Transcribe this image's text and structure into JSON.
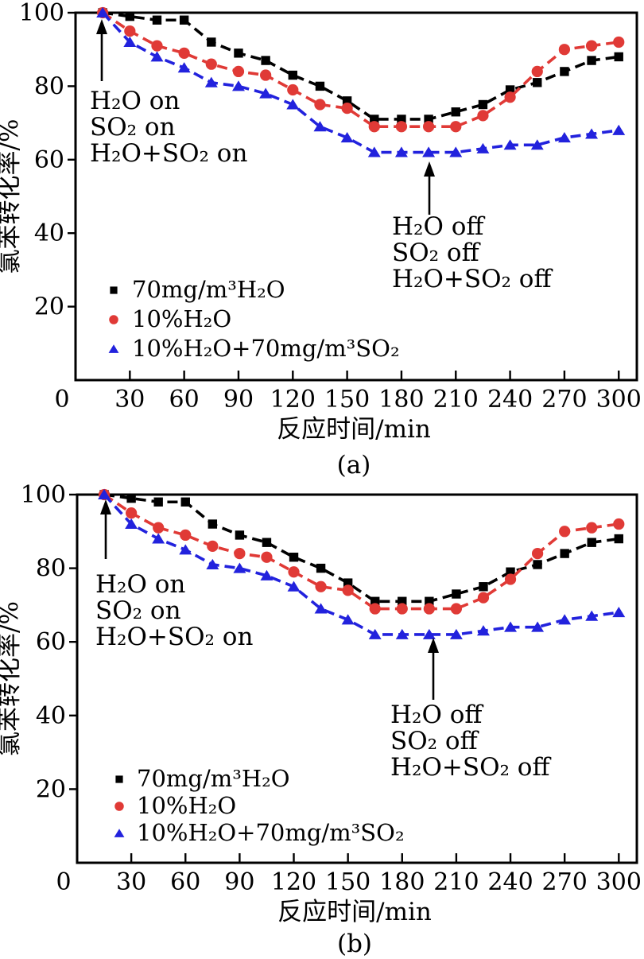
{
  "figure_background": "#ffffff",
  "colors": {
    "series_h2o_70mg": "#000000",
    "series_h2o_10pct": "#e03a36",
    "series_h2o_so2": "#2222dd",
    "axis": "#000000"
  },
  "chart_data": [
    {
      "type": "line",
      "caption": "(a)",
      "xlabel": "反应时间/min",
      "ylabel": "氯苯转化率/%",
      "xlim": [
        0,
        310
      ],
      "ylim": [
        0,
        100
      ],
      "x_ticks": [
        0,
        30,
        60,
        90,
        120,
        150,
        180,
        210,
        240,
        270,
        300
      ],
      "y_ticks": [
        20,
        40,
        60,
        80,
        100
      ],
      "grid": false,
      "legend_position": "inside-lower-left",
      "x": [
        15,
        30,
        45,
        60,
        75,
        90,
        105,
        120,
        135,
        150,
        165,
        180,
        195,
        210,
        225,
        240,
        255,
        270,
        285,
        300
      ],
      "series": [
        {
          "name": "70mg/m³H₂O",
          "marker": "square",
          "color": "#000000",
          "values": [
            100,
            99,
            98,
            98,
            92,
            89,
            87,
            83,
            80,
            76,
            71,
            71,
            71,
            73,
            75,
            79,
            81,
            84,
            87,
            88
          ]
        },
        {
          "name": "10%H₂O",
          "marker": "circle",
          "color": "#e03a36",
          "values": [
            100,
            95,
            91,
            89,
            86,
            84,
            83,
            79,
            75,
            74,
            69,
            69,
            69,
            69,
            72,
            77,
            84,
            90,
            91,
            92
          ]
        },
        {
          "name": "10%H₂O+70mg/m³SO₂",
          "marker": "triangle",
          "color": "#2222dd",
          "values": [
            100,
            92,
            88,
            85,
            81,
            80,
            78,
            75,
            69,
            66,
            62,
            62,
            62,
            62,
            63,
            64,
            64,
            66,
            67,
            68
          ]
        }
      ],
      "annotations": [
        {
          "id": "on",
          "lines": [
            "H₂O on",
            "SO₂ on",
            "H₂O+SO₂ on"
          ],
          "arrow_points_to_t": 15
        },
        {
          "id": "off",
          "lines": [
            "H₂O off",
            "SO₂ off",
            "H₂O+SO₂ off"
          ],
          "arrow_points_to_t": 195
        }
      ]
    },
    {
      "type": "line",
      "caption": "(b)",
      "xlabel": "反应时间/min",
      "ylabel": "氯苯转化率/%",
      "xlim": [
        0,
        310
      ],
      "ylim": [
        0,
        100
      ],
      "x_ticks": [
        0,
        30,
        60,
        90,
        120,
        150,
        180,
        210,
        240,
        270,
        300
      ],
      "y_ticks": [
        20,
        40,
        60,
        80,
        100
      ],
      "grid": false,
      "legend_position": "inside-lower-left",
      "x": [
        15,
        30,
        45,
        60,
        75,
        90,
        105,
        120,
        135,
        150,
        165,
        180,
        195,
        210,
        225,
        240,
        255,
        270,
        285,
        300
      ],
      "series": [
        {
          "name": "70mg/m³H₂O",
          "marker": "square",
          "color": "#000000",
          "values": [
            100,
            99,
            98,
            98,
            92,
            89,
            87,
            83,
            80,
            76,
            71,
            71,
            71,
            73,
            75,
            79,
            81,
            84,
            87,
            88
          ]
        },
        {
          "name": "10%H₂O",
          "marker": "circle",
          "color": "#e03a36",
          "values": [
            100,
            95,
            91,
            89,
            86,
            84,
            83,
            79,
            75,
            74,
            69,
            69,
            69,
            69,
            72,
            77,
            84,
            90,
            91,
            92
          ]
        },
        {
          "name": "10%H₂O+70mg/m³SO₂",
          "marker": "triangle",
          "color": "#2222dd",
          "values": [
            100,
            92,
            88,
            85,
            81,
            80,
            78,
            75,
            69,
            66,
            62,
            62,
            62,
            62,
            63,
            64,
            64,
            66,
            67,
            68
          ]
        }
      ],
      "annotations": [
        {
          "id": "on",
          "lines": [
            "H₂O on",
            "SO₂ on",
            "H₂O+SO₂ on"
          ],
          "arrow_points_to_t": 15
        },
        {
          "id": "off",
          "lines": [
            "H₂O off",
            "SO₂ off",
            "H₂O+SO₂ off"
          ],
          "arrow_points_to_t": 195
        }
      ]
    }
  ]
}
